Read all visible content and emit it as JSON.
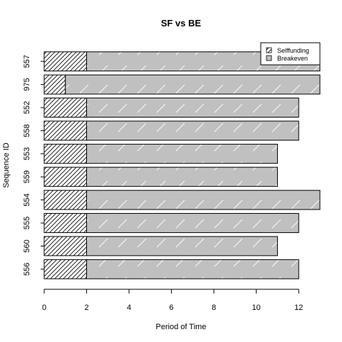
{
  "chart_data": {
    "type": "bar",
    "orientation": "horizontal",
    "stacked": true,
    "title": "SF vs BE",
    "xlabel": "Period of Time",
    "ylabel": "Sequence ID",
    "xlim": [
      0,
      13
    ],
    "x_ticks": [
      0,
      2,
      4,
      6,
      8,
      10,
      12
    ],
    "categories": [
      "557",
      "975",
      "552",
      "558",
      "553",
      "559",
      "554",
      "555",
      "560",
      "556"
    ],
    "series": [
      {
        "name": "Selffunding",
        "values": [
          2,
          1,
          2,
          2,
          2,
          2,
          2,
          2,
          2,
          2
        ],
        "fill": "hatched",
        "color": "#ffffff"
      },
      {
        "name": "Breakeven",
        "values": [
          11,
          12,
          10,
          10,
          9,
          9,
          11,
          10,
          9,
          10
        ],
        "fill": "light-hatched",
        "color": "#c0c0c0"
      }
    ],
    "legend_position": "top-right",
    "grid": false
  }
}
